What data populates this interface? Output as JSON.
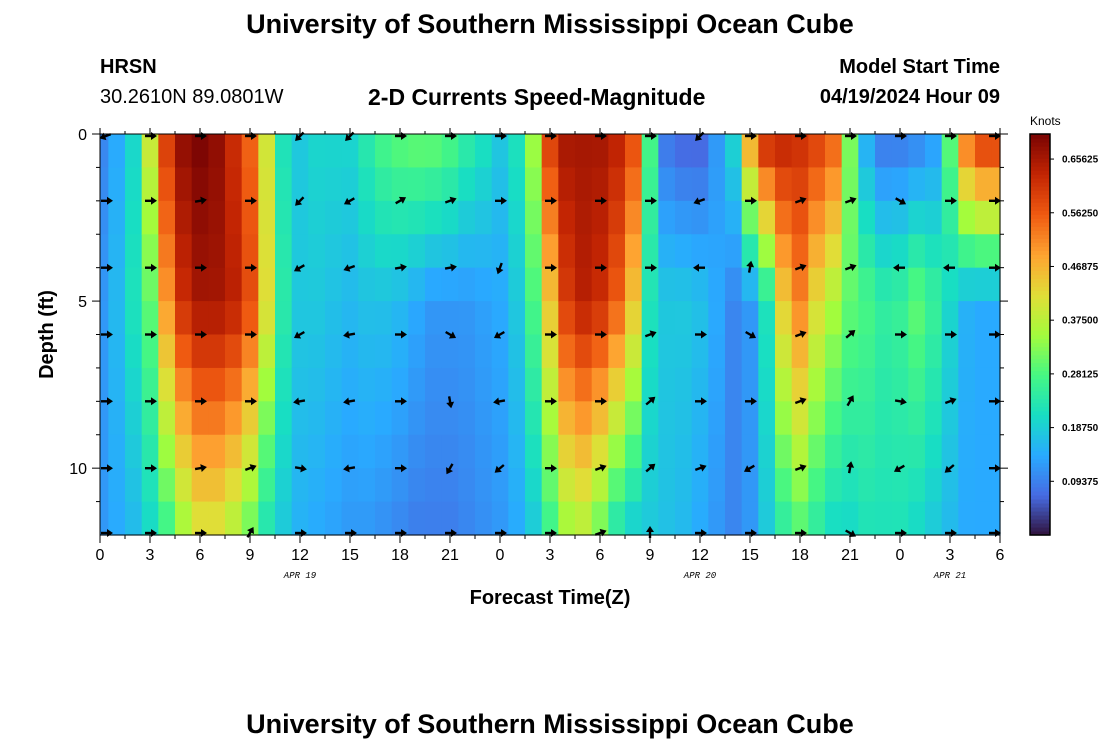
{
  "header": {
    "title": "University of Southern Mississippi Ocean Cube",
    "station": "HRSN",
    "coordinates": "30.2610N  89.0801W",
    "subtitle": "2-D Currents Speed-Magnitude",
    "model_start_label": "Model Start Time",
    "model_start_value": "04/19/2024 Hour 09"
  },
  "footer": {
    "title": "University of Southern Mississippi Ocean Cube"
  },
  "chart_data": {
    "type": "heatmap",
    "title": "2-D Currents Speed-Magnitude",
    "xlabel": "Forecast Time(Z)",
    "ylabel": "Depth (ft)",
    "x_hours_range": [
      0,
      54
    ],
    "ylim": [
      0,
      12
    ],
    "x_tick_labels": [
      "0",
      "3",
      "6",
      "9",
      "12",
      "15",
      "18",
      "21",
      "0",
      "3",
      "6",
      "9",
      "12",
      "15",
      "18",
      "21",
      "0",
      "3",
      "6"
    ],
    "y_tick_labels": [
      "0",
      "5",
      "10"
    ],
    "y_tick_values": [
      0,
      5,
      10
    ],
    "date_labels": [
      {
        "text": "APR 19",
        "hour": 12
      },
      {
        "text": "APR 20",
        "hour": 36
      },
      {
        "text": "APR 21",
        "hour": 51
      }
    ],
    "colorbar": {
      "label": "Knots",
      "range": [
        0,
        0.7
      ],
      "ticks": [
        "0.65625",
        "0.56250",
        "0.46875",
        "0.37500",
        "0.28125",
        "0.18750",
        "0.09375"
      ],
      "tick_values": [
        0.65625,
        0.5625,
        0.46875,
        0.375,
        0.28125,
        0.1875,
        0.09375
      ],
      "colormap": "turbo"
    },
    "speed_profile_knots": {
      "hours": [
        0,
        1,
        2,
        3,
        4,
        5,
        6,
        7,
        8,
        9,
        10,
        11,
        12,
        13,
        14,
        15,
        16,
        17,
        18,
        19,
        20,
        21,
        22,
        23,
        24,
        25,
        26,
        27,
        28,
        29,
        30,
        31,
        32,
        33,
        34,
        35,
        36,
        37,
        38,
        39,
        40,
        41,
        42,
        43,
        44,
        45,
        46,
        47,
        48,
        49,
        50,
        51,
        52,
        53,
        54
      ],
      "surface": [
        0.1,
        0.14,
        0.2,
        0.4,
        0.6,
        0.68,
        0.7,
        0.68,
        0.62,
        0.55,
        0.4,
        0.22,
        0.18,
        0.2,
        0.2,
        0.2,
        0.24,
        0.28,
        0.3,
        0.31,
        0.31,
        0.29,
        0.25,
        0.22,
        0.18,
        0.22,
        0.35,
        0.6,
        0.66,
        0.66,
        0.66,
        0.64,
        0.58,
        0.28,
        0.08,
        0.06,
        0.06,
        0.12,
        0.2,
        0.5,
        0.64,
        0.64,
        0.62,
        0.6,
        0.56,
        0.32,
        0.14,
        0.08,
        0.08,
        0.09,
        0.12,
        0.3,
        0.55,
        0.62,
        0.62
      ],
      "mid": [
        0.12,
        0.16,
        0.22,
        0.3,
        0.5,
        0.62,
        0.66,
        0.66,
        0.64,
        0.58,
        0.42,
        0.24,
        0.18,
        0.18,
        0.17,
        0.16,
        0.17,
        0.17,
        0.16,
        0.14,
        0.12,
        0.12,
        0.12,
        0.13,
        0.14,
        0.18,
        0.28,
        0.45,
        0.6,
        0.64,
        0.62,
        0.56,
        0.45,
        0.22,
        0.18,
        0.18,
        0.17,
        0.14,
        0.1,
        0.12,
        0.22,
        0.44,
        0.52,
        0.42,
        0.36,
        0.3,
        0.28,
        0.25,
        0.26,
        0.3,
        0.26,
        0.2,
        0.15,
        0.14,
        0.14
      ],
      "bottom": [
        0.12,
        0.14,
        0.16,
        0.2,
        0.26,
        0.34,
        0.4,
        0.4,
        0.36,
        0.3,
        0.22,
        0.18,
        0.15,
        0.14,
        0.13,
        0.12,
        0.12,
        0.11,
        0.1,
        0.09,
        0.09,
        0.09,
        0.1,
        0.11,
        0.12,
        0.14,
        0.18,
        0.26,
        0.34,
        0.36,
        0.3,
        0.22,
        0.18,
        0.18,
        0.17,
        0.16,
        0.14,
        0.12,
        0.1,
        0.12,
        0.18,
        0.24,
        0.28,
        0.24,
        0.2,
        0.2,
        0.22,
        0.22,
        0.22,
        0.2,
        0.18,
        0.16,
        0.14,
        0.14,
        0.14
      ]
    },
    "vector_depths_ft": [
      0,
      2,
      4,
      6,
      8,
      10,
      12
    ],
    "vector_hours": [
      0,
      3,
      6,
      9,
      12,
      15,
      18,
      21,
      24,
      27,
      30,
      33,
      36,
      39,
      42,
      45,
      48,
      51,
      54
    ],
    "vector_directions_deg": [
      [
        200,
        0,
        0,
        0,
        225,
        225,
        0,
        0,
        0,
        0,
        0,
        0,
        225,
        0,
        0,
        0,
        0,
        0,
        0
      ],
      [
        0,
        0,
        10,
        0,
        225,
        210,
        30,
        20,
        0,
        0,
        0,
        0,
        200,
        0,
        20,
        20,
        330,
        0,
        0
      ],
      [
        0,
        0,
        0,
        0,
        210,
        200,
        10,
        10,
        250,
        0,
        0,
        0,
        180,
        80,
        20,
        20,
        180,
        180,
        0
      ],
      [
        0,
        0,
        0,
        0,
        210,
        190,
        0,
        330,
        210,
        0,
        0,
        20,
        0,
        330,
        20,
        40,
        0,
        0,
        0
      ],
      [
        0,
        0,
        0,
        0,
        190,
        190,
        0,
        280,
        190,
        0,
        0,
        40,
        0,
        0,
        20,
        60,
        350,
        20,
        0
      ],
      [
        0,
        0,
        10,
        20,
        350,
        190,
        0,
        240,
        220,
        0,
        20,
        40,
        20,
        210,
        20,
        80,
        210,
        220,
        0
      ],
      [
        0,
        0,
        0,
        60,
        0,
        0,
        0,
        0,
        0,
        0,
        20,
        90,
        0,
        0,
        0,
        330,
        0,
        0,
        0
      ]
    ]
  }
}
